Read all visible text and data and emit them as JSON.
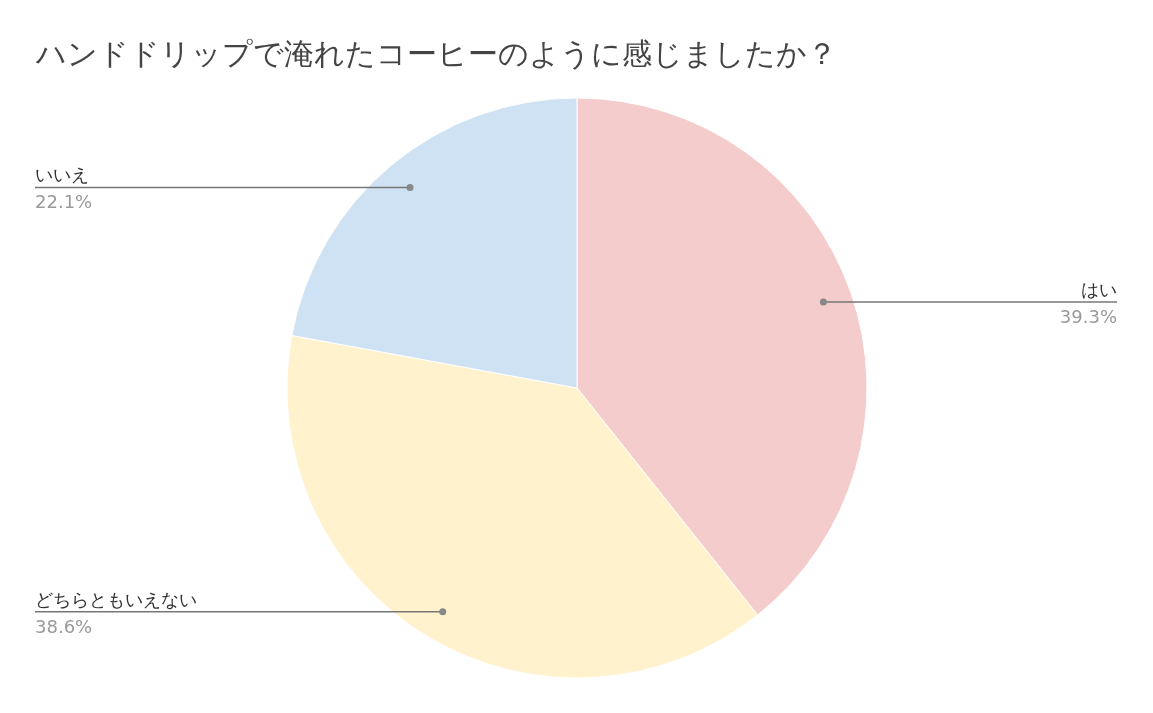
{
  "chart_data": {
    "type": "pie",
    "title": "ハンドドリップで淹れたコーヒーのように感じましたか？",
    "categories": [
      "はい",
      "どちらともいえない",
      "いいえ"
    ],
    "values": [
      39.3,
      38.6,
      22.1
    ],
    "colors": [
      "#f4cccc",
      "#fff2cc",
      "#cfe2f3"
    ],
    "value_labels": [
      "39.3%",
      "38.6%",
      "22.1%"
    ]
  }
}
